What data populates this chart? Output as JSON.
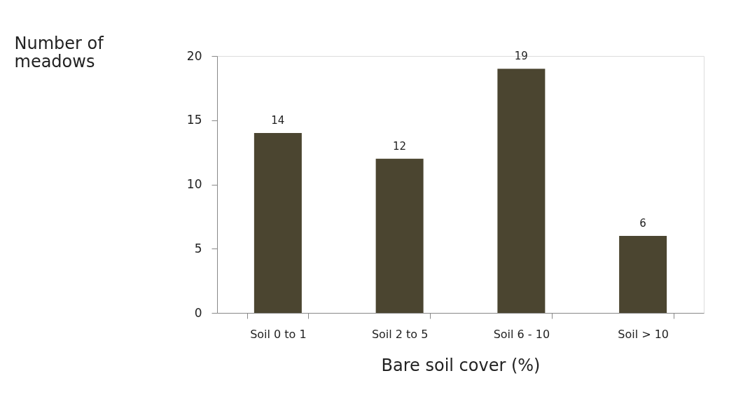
{
  "chart_data": {
    "type": "bar",
    "xlabel": "Bare soil cover (%)",
    "ylabel": "Number of meadows",
    "categories": [
      "Soil 0 to 1",
      "Soil 2 to 5",
      "Soil 6 - 10",
      "Soil > 10"
    ],
    "values": [
      14,
      12,
      19,
      6
    ],
    "color": "#4b4530",
    "ylim": [
      0,
      20
    ],
    "yticks": [
      0,
      5,
      10,
      15,
      20
    ],
    "grid": false,
    "data_labels": true
  }
}
